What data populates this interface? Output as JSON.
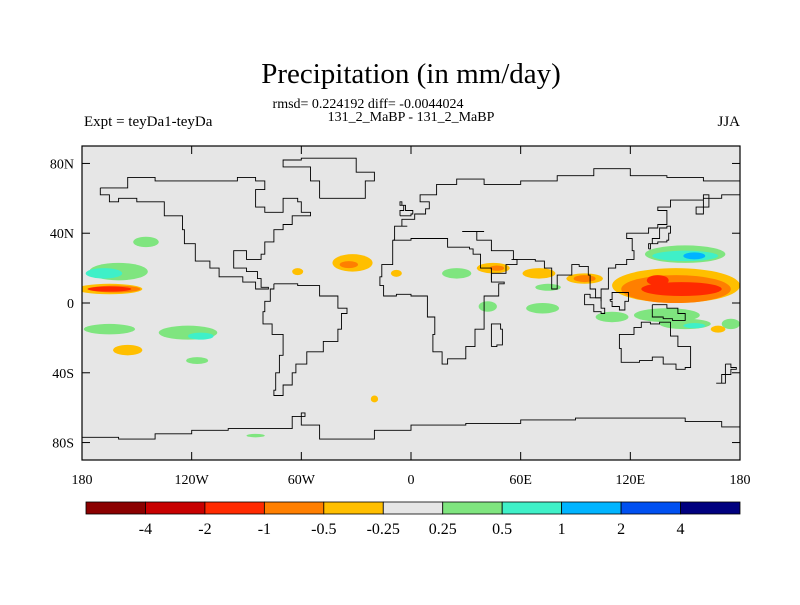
{
  "chart_data": {
    "type": "heatmap",
    "title": "Precipitation (in mm/day)",
    "subtitle": "rmsd= 0.224192 diff= -0.0044024",
    "experiment": "131_2_MaBP - 131_2_MaBP",
    "left_label": "Expt = teyDa1-teyDa",
    "season": "JJA",
    "xlim": [
      -180,
      180
    ],
    "ylim": [
      -90,
      90
    ],
    "x_ticks": [
      {
        "value": -180,
        "label": "180"
      },
      {
        "value": -120,
        "label": "120W"
      },
      {
        "value": -60,
        "label": "60W"
      },
      {
        "value": 0,
        "label": "0"
      },
      {
        "value": 60,
        "label": "60E"
      },
      {
        "value": 120,
        "label": "120E"
      },
      {
        "value": 180,
        "label": "180"
      }
    ],
    "y_ticks": [
      {
        "value": 80,
        "label": "80N"
      },
      {
        "value": 40,
        "label": "40N"
      },
      {
        "value": 0,
        "label": "0"
      },
      {
        "value": -40,
        "label": "40S"
      },
      {
        "value": -80,
        "label": "80S"
      }
    ],
    "background_color": "#e6e6e6",
    "colorbar": {
      "colors": [
        "#8b0000",
        "#c80000",
        "#ff2a00",
        "#ff7f00",
        "#ffbf00",
        "#e6e6e6",
        "#7fe57f",
        "#3ff0c8",
        "#00b4ff",
        "#0050f0",
        "#00007f"
      ],
      "labels": [
        "-4",
        "-2",
        "-1",
        "-0.5",
        "-0.25",
        "0.25",
        "0.5",
        "1",
        "2",
        "4"
      ]
    },
    "anomaly_regions": [
      {
        "lon": -165,
        "lat": 8,
        "rlon": 18,
        "rlat": 3,
        "color": "#ffbf00"
      },
      {
        "lon": -162,
        "lat": 8,
        "rlon": 14,
        "rlat": 2,
        "color": "#ff7f00"
      },
      {
        "lon": -165,
        "lat": 8,
        "rlon": 12,
        "rlat": 1.5,
        "color": "#ff2a00"
      },
      {
        "lon": -160,
        "lat": 18,
        "rlon": 16,
        "rlat": 5,
        "color": "#7fe57f"
      },
      {
        "lon": -168,
        "lat": 17,
        "rlon": 10,
        "rlat": 3,
        "color": "#3ff0c8"
      },
      {
        "lon": -145,
        "lat": 35,
        "rlon": 7,
        "rlat": 3,
        "color": "#7fe57f"
      },
      {
        "lon": -165,
        "lat": -15,
        "rlon": 14,
        "rlat": 3,
        "color": "#7fe57f"
      },
      {
        "lon": -155,
        "lat": -27,
        "rlon": 8,
        "rlat": 3,
        "color": "#ffbf00"
      },
      {
        "lon": -122,
        "lat": -17,
        "rlon": 16,
        "rlat": 4,
        "color": "#7fe57f"
      },
      {
        "lon": -115,
        "lat": -19,
        "rlon": 7,
        "rlat": 2,
        "color": "#3ff0c8"
      },
      {
        "lon": -117,
        "lat": -33,
        "rlon": 6,
        "rlat": 2,
        "color": "#7fe57f"
      },
      {
        "lon": -32,
        "lat": 23,
        "rlon": 11,
        "rlat": 5,
        "color": "#ffbf00"
      },
      {
        "lon": -34,
        "lat": 22,
        "rlon": 5,
        "rlat": 2,
        "color": "#ff7f00"
      },
      {
        "lon": -62,
        "lat": 18,
        "rlon": 3,
        "rlat": 2,
        "color": "#ffbf00"
      },
      {
        "lon": -8,
        "lat": 17,
        "rlon": 3,
        "rlat": 2,
        "color": "#ffbf00"
      },
      {
        "lon": 25,
        "lat": 17,
        "rlon": 8,
        "rlat": 3,
        "color": "#7fe57f"
      },
      {
        "lon": 45,
        "lat": 20,
        "rlon": 9,
        "rlat": 3,
        "color": "#ffbf00"
      },
      {
        "lon": 47,
        "lat": 20,
        "rlon": 4,
        "rlat": 1.5,
        "color": "#ff7f00"
      },
      {
        "lon": 70,
        "lat": 17,
        "rlon": 9,
        "rlat": 3,
        "color": "#ffbf00"
      },
      {
        "lon": 95,
        "lat": 14,
        "rlon": 10,
        "rlat": 3,
        "color": "#ffbf00"
      },
      {
        "lon": 95,
        "lat": 14,
        "rlon": 6,
        "rlat": 2,
        "color": "#ff7f00"
      },
      {
        "lon": 75,
        "lat": 9,
        "rlon": 7,
        "rlat": 2,
        "color": "#7fe57f"
      },
      {
        "lon": 72,
        "lat": -3,
        "rlon": 9,
        "rlat": 3,
        "color": "#7fe57f"
      },
      {
        "lon": 42,
        "lat": -2,
        "rlon": 5,
        "rlat": 3,
        "color": "#7fe57f"
      },
      {
        "lon": 110,
        "lat": -8,
        "rlon": 9,
        "rlat": 3,
        "color": "#7fe57f"
      },
      {
        "lon": 150,
        "lat": 28,
        "rlon": 22,
        "rlat": 5,
        "color": "#7fe57f"
      },
      {
        "lon": 150,
        "lat": 27,
        "rlon": 18,
        "rlat": 3,
        "color": "#3ff0c8"
      },
      {
        "lon": 155,
        "lat": 27,
        "rlon": 6,
        "rlat": 2,
        "color": "#00b4ff"
      },
      {
        "lon": 145,
        "lat": 10,
        "rlon": 35,
        "rlat": 10,
        "color": "#ffbf00"
      },
      {
        "lon": 145,
        "lat": 8,
        "rlon": 30,
        "rlat": 8,
        "color": "#ff7f00"
      },
      {
        "lon": 148,
        "lat": 8,
        "rlon": 22,
        "rlat": 4,
        "color": "#ff2a00"
      },
      {
        "lon": 135,
        "lat": 13,
        "rlon": 6,
        "rlat": 3,
        "color": "#ff2a00"
      },
      {
        "lon": 140,
        "lat": -7,
        "rlon": 18,
        "rlat": 4,
        "color": "#7fe57f"
      },
      {
        "lon": 150,
        "lat": -12,
        "rlon": 14,
        "rlat": 3,
        "color": "#7fe57f"
      },
      {
        "lon": 155,
        "lat": -13,
        "rlon": 6,
        "rlat": 1.5,
        "color": "#3ff0c8"
      },
      {
        "lon": 175,
        "lat": -12,
        "rlon": 5,
        "rlat": 3,
        "color": "#7fe57f"
      },
      {
        "lon": 168,
        "lat": -15,
        "rlon": 4,
        "rlat": 2,
        "color": "#ffbf00"
      },
      {
        "lon": -20,
        "lat": -55,
        "rlon": 2,
        "rlat": 2,
        "color": "#ffbf00"
      },
      {
        "lon": -85,
        "lat": -76,
        "rlon": 5,
        "rlat": 1,
        "color": "#7fe57f"
      }
    ],
    "coastlines": [
      [
        [
          -170,
          66
        ],
        [
          -155,
          72
        ],
        [
          -140,
          70
        ],
        [
          -130,
          70
        ],
        [
          -110,
          70
        ],
        [
          -95,
          72
        ],
        [
          -85,
          70
        ],
        [
          -80,
          65
        ],
        [
          -85,
          55
        ],
        [
          -80,
          52
        ],
        [
          -70,
          60
        ],
        [
          -62,
          58
        ],
        [
          -60,
          52
        ],
        [
          -55,
          50
        ],
        [
          -65,
          45
        ],
        [
          -70,
          42
        ],
        [
          -75,
          35
        ],
        [
          -80,
          28
        ],
        [
          -82,
          25
        ],
        [
          -90,
          30
        ],
        [
          -97,
          26
        ],
        [
          -97,
          20
        ],
        [
          -90,
          18
        ],
        [
          -84,
          14
        ],
        [
          -82,
          9
        ],
        [
          -78,
          8
        ],
        [
          -85,
          12
        ],
        [
          -92,
          15
        ],
        [
          -105,
          20
        ],
        [
          -110,
          24
        ],
        [
          -118,
          34
        ],
        [
          -124,
          42
        ],
        [
          -125,
          50
        ],
        [
          -135,
          58
        ],
        [
          -150,
          60
        ],
        [
          -160,
          58
        ],
        [
          -165,
          62
        ],
        [
          -170,
          66
        ]
      ],
      [
        [
          -75,
          11
        ],
        [
          -62,
          10
        ],
        [
          -50,
          4
        ],
        [
          -40,
          -3
        ],
        [
          -35,
          -6
        ],
        [
          -38,
          -15
        ],
        [
          -40,
          -22
        ],
        [
          -48,
          -28
        ],
        [
          -57,
          -35
        ],
        [
          -63,
          -40
        ],
        [
          -65,
          -47
        ],
        [
          -70,
          -53
        ],
        [
          -75,
          -50
        ],
        [
          -74,
          -40
        ],
        [
          -72,
          -30
        ],
        [
          -70,
          -18
        ],
        [
          -76,
          -12
        ],
        [
          -81,
          -5
        ],
        [
          -80,
          1
        ],
        [
          -77,
          8
        ],
        [
          -75,
          11
        ]
      ],
      [
        [
          -10,
          36
        ],
        [
          0,
          37
        ],
        [
          10,
          37
        ],
        [
          20,
          32
        ],
        [
          32,
          31
        ],
        [
          34,
          28
        ],
        [
          38,
          20
        ],
        [
          44,
          12
        ],
        [
          51,
          11
        ],
        [
          48,
          4
        ],
        [
          40,
          -3
        ],
        [
          40,
          -15
        ],
        [
          35,
          -25
        ],
        [
          30,
          -32
        ],
        [
          20,
          -35
        ],
        [
          17,
          -28
        ],
        [
          12,
          -18
        ],
        [
          13,
          -8
        ],
        [
          9,
          -1
        ],
        [
          9,
          4
        ],
        [
          0,
          5
        ],
        [
          -8,
          4
        ],
        [
          -15,
          10
        ],
        [
          -17,
          15
        ],
        [
          -16,
          22
        ],
        [
          -10,
          28
        ],
        [
          -10,
          36
        ]
      ],
      [
        [
          -10,
          36
        ],
        [
          -9,
          44
        ],
        [
          -2,
          44
        ],
        [
          -5,
          48
        ],
        [
          2,
          51
        ],
        [
          8,
          54
        ],
        [
          10,
          58
        ],
        [
          5,
          62
        ],
        [
          14,
          68
        ],
        [
          25,
          71
        ],
        [
          40,
          68
        ],
        [
          60,
          70
        ],
        [
          80,
          73
        ],
        [
          100,
          77
        ],
        [
          120,
          73
        ],
        [
          140,
          72
        ],
        [
          160,
          70
        ],
        [
          180,
          68
        ]
      ],
      [
        [
          28,
          41
        ],
        [
          40,
          41
        ],
        [
          36,
          36
        ],
        [
          44,
          30
        ],
        [
          50,
          30
        ],
        [
          56,
          25
        ],
        [
          58,
          22
        ],
        [
          52,
          17
        ],
        [
          44,
          13
        ]
      ],
      [
        [
          55,
          25
        ],
        [
          62,
          25
        ],
        [
          68,
          24
        ],
        [
          73,
          20
        ],
        [
          77,
          8
        ],
        [
          80,
          13
        ],
        [
          80,
          16
        ],
        [
          88,
          22
        ],
        [
          92,
          21
        ],
        [
          97,
          16
        ],
        [
          98,
          8
        ],
        [
          101,
          3
        ],
        [
          104,
          1
        ],
        [
          104,
          8
        ],
        [
          108,
          12
        ],
        [
          108,
          20
        ],
        [
          112,
          22
        ],
        [
          118,
          25
        ],
        [
          122,
          30
        ],
        [
          121,
          37
        ],
        [
          118,
          40
        ],
        [
          125,
          40
        ],
        [
          130,
          43
        ],
        [
          135,
          45
        ],
        [
          140,
          53
        ],
        [
          135,
          55
        ],
        [
          142,
          59
        ],
        [
          155,
          59
        ],
        [
          160,
          62
        ],
        [
          163,
          60
        ],
        [
          163,
          55
        ],
        [
          156,
          51
        ],
        [
          160,
          60
        ],
        [
          170,
          62
        ],
        [
          180,
          65
        ]
      ],
      [
        [
          114,
          -22
        ],
        [
          114,
          -26
        ],
        [
          115,
          -34
        ],
        [
          125,
          -33
        ],
        [
          132,
          -31
        ],
        [
          138,
          -35
        ],
        [
          145,
          -38
        ],
        [
          150,
          -37
        ],
        [
          153,
          -30
        ],
        [
          153,
          -25
        ],
        [
          146,
          -19
        ],
        [
          142,
          -11
        ],
        [
          136,
          -12
        ],
        [
          131,
          -11
        ],
        [
          126,
          -14
        ],
        [
          122,
          -18
        ],
        [
          114,
          -22
        ]
      ],
      [
        [
          -180,
          -77
        ],
        [
          -160,
          -78
        ],
        [
          -140,
          -75
        ],
        [
          -120,
          -73
        ],
        [
          -100,
          -72
        ],
        [
          -80,
          -72
        ],
        [
          -65,
          -65
        ],
        [
          -58,
          -63
        ],
        [
          -60,
          -70
        ],
        [
          -50,
          -78
        ],
        [
          -30,
          -78
        ],
        [
          -20,
          -73
        ],
        [
          0,
          -70
        ],
        [
          30,
          -69
        ],
        [
          60,
          -67
        ],
        [
          90,
          -66
        ],
        [
          120,
          -66
        ],
        [
          150,
          -68
        ],
        [
          170,
          -71
        ],
        [
          180,
          -77
        ]
      ],
      [
        [
          -50,
          60
        ],
        [
          -45,
          60
        ],
        [
          -25,
          70
        ],
        [
          -20,
          75
        ],
        [
          -30,
          83
        ],
        [
          -60,
          82
        ],
        [
          -70,
          78
        ],
        [
          -55,
          70
        ],
        [
          -50,
          60
        ]
      ],
      [
        [
          -6,
          50
        ],
        [
          0,
          51
        ],
        [
          1,
          53
        ],
        [
          -3,
          56
        ],
        [
          -5,
          58
        ],
        [
          -6,
          56
        ],
        [
          -4,
          53
        ],
        [
          -6,
          50
        ]
      ],
      [
        [
          130,
          31
        ],
        [
          131,
          34
        ],
        [
          135,
          35
        ],
        [
          140,
          36
        ],
        [
          141,
          40
        ],
        [
          142,
          44
        ],
        [
          140,
          43
        ],
        [
          136,
          37
        ],
        [
          132,
          34
        ],
        [
          130,
          31
        ]
      ],
      [
        [
          95,
          5
        ],
        [
          98,
          3
        ],
        [
          104,
          -3
        ],
        [
          106,
          -6
        ],
        [
          104,
          -5
        ],
        [
          100,
          -1
        ],
        [
          95,
          5
        ]
      ],
      [
        [
          109,
          1
        ],
        [
          110,
          -2
        ],
        [
          114,
          -4
        ],
        [
          117,
          1
        ],
        [
          119,
          6
        ],
        [
          115,
          6
        ],
        [
          110,
          2
        ],
        [
          109,
          1
        ]
      ],
      [
        [
          132,
          -1
        ],
        [
          140,
          -3
        ],
        [
          146,
          -6
        ],
        [
          150,
          -10
        ],
        [
          143,
          -9
        ],
        [
          138,
          -8
        ],
        [
          132,
          -3
        ],
        [
          132,
          -1
        ]
      ],
      [
        [
          44,
          -25
        ],
        [
          47,
          -24
        ],
        [
          50,
          -15
        ],
        [
          49,
          -12
        ],
        [
          44,
          -17
        ],
        [
          44,
          -25
        ]
      ],
      [
        [
          172,
          -35
        ],
        [
          175,
          -37
        ],
        [
          178,
          -38
        ],
        [
          175,
          -41
        ],
        [
          170,
          -46
        ],
        [
          167,
          -46
        ],
        [
          172,
          -41
        ],
        [
          172,
          -35
        ]
      ]
    ]
  }
}
